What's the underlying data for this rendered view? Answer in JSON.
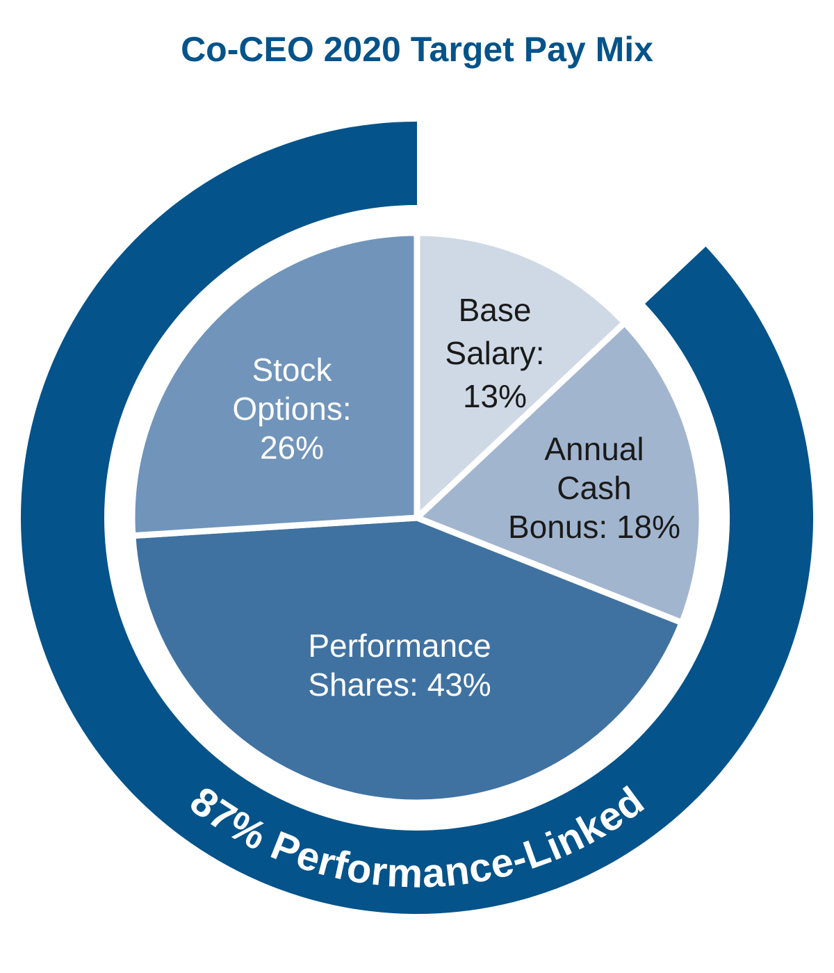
{
  "chart_data": {
    "type": "pie",
    "title": "Co-CEO 2020 Target Pay Mix",
    "slices": [
      {
        "label_lines": [
          "Base",
          "Salary:",
          "13%"
        ],
        "value": 13,
        "color": "#cfd9e6",
        "text_color": "#1a1a1a"
      },
      {
        "label_lines": [
          "Annual",
          "Cash",
          "Bonus: 18%"
        ],
        "value": 18,
        "color": "#a2b5cf",
        "text_color": "#1a1a1a"
      },
      {
        "label_lines": [
          "Performance",
          "Shares: 43%"
        ],
        "value": 43,
        "color": "#3f72a1",
        "text_color": "#ffffff"
      },
      {
        "label_lines": [
          "Stock",
          "Options:",
          "26%"
        ],
        "value": 26,
        "color": "#7194ba",
        "text_color": "#ffffff"
      }
    ],
    "outer_arc": {
      "label": "87% Performance-Linked",
      "value": 87,
      "color": "#04538a",
      "text_color": "#ffffff"
    }
  }
}
